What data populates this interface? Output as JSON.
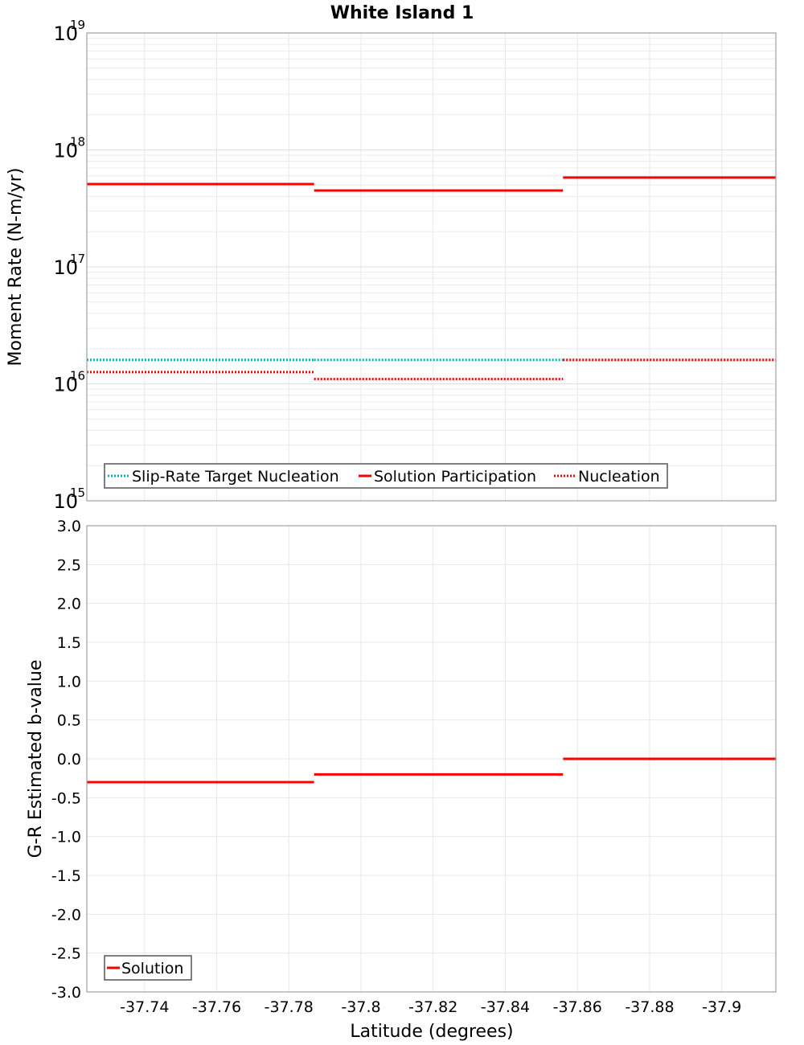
{
  "title": "White Island 1",
  "top_plot": {
    "ylabel": "Moment Rate (N-m/yr)",
    "y_ticks": [
      {
        "base": "10",
        "exp": "19"
      },
      {
        "base": "10",
        "exp": "18"
      },
      {
        "base": "10",
        "exp": "17"
      },
      {
        "base": "10",
        "exp": "16"
      },
      {
        "base": "10",
        "exp": "15"
      }
    ],
    "legend": [
      {
        "label": "Slip-Rate Target Nucleation",
        "color": "#00b4b4",
        "style": "dotted"
      },
      {
        "label": "Solution Participation",
        "color": "#ff0000",
        "style": "solid"
      },
      {
        "label": "Nucleation",
        "color": "#ff0000",
        "style": "dotted"
      }
    ]
  },
  "bottom_plot": {
    "ylabel": "G-R Estimated b-value",
    "y_ticks": [
      "3.0",
      "2.5",
      "2.0",
      "1.5",
      "1.0",
      "0.5",
      "0.0",
      "-0.5",
      "-1.0",
      "-1.5",
      "-2.0",
      "-2.5",
      "-3.0"
    ],
    "legend": [
      {
        "label": "Solution",
        "color": "#ff0000",
        "style": "solid"
      }
    ]
  },
  "x_axis": {
    "label": "Latitude (degrees)",
    "ticks": [
      "-37.74",
      "-37.76",
      "-37.78",
      "-37.8",
      "-37.82",
      "-37.84",
      "-37.86",
      "-37.88",
      "-37.9"
    ]
  },
  "chart_data": [
    {
      "type": "line",
      "title": "White Island 1",
      "xlabel": "Latitude (degrees)",
      "ylabel": "Moment Rate (N-m/yr)",
      "yscale": "log",
      "ylim": [
        1000000000000000.0,
        1e+19
      ],
      "xlim": [
        -37.724,
        -37.915
      ],
      "grid": true,
      "legend_position": "lower left",
      "x_ticks": [
        -37.74,
        -37.76,
        -37.78,
        -37.8,
        -37.82,
        -37.84,
        -37.86,
        -37.88,
        -37.9
      ],
      "series": [
        {
          "name": "Slip-Rate Target Nucleation",
          "color": "#00b4b4",
          "style": "dotted",
          "segments": [
            {
              "x": [
                -37.724,
                -37.787
              ],
              "y": 1.6e+16
            },
            {
              "x": [
                -37.787,
                -37.856
              ],
              "y": 1.6e+16
            },
            {
              "x": [
                -37.856,
                -37.915
              ],
              "y": 1.6e+16
            }
          ]
        },
        {
          "name": "Solution Participation",
          "color": "#ff0000",
          "style": "solid",
          "segments": [
            {
              "x": [
                -37.724,
                -37.787
              ],
              "y": 5.1e+17
            },
            {
              "x": [
                -37.787,
                -37.856
              ],
              "y": 4.5e+17
            },
            {
              "x": [
                -37.856,
                -37.915
              ],
              "y": 5.8e+17
            }
          ]
        },
        {
          "name": "Nucleation",
          "color": "#ff0000",
          "style": "dotted",
          "segments": [
            {
              "x": [
                -37.724,
                -37.787
              ],
              "y": 1.26e+16
            },
            {
              "x": [
                -37.787,
                -37.856
              ],
              "y": 1.1e+16
            },
            {
              "x": [
                -37.856,
                -37.915
              ],
              "y": 1.6e+16
            }
          ]
        }
      ]
    },
    {
      "type": "line",
      "title": "",
      "xlabel": "Latitude (degrees)",
      "ylabel": "G-R Estimated b-value",
      "ylim": [
        -3.0,
        3.0
      ],
      "xlim": [
        -37.724,
        -37.915
      ],
      "grid": true,
      "legend_position": "lower left",
      "x_ticks": [
        -37.74,
        -37.76,
        -37.78,
        -37.8,
        -37.82,
        -37.84,
        -37.86,
        -37.88,
        -37.9
      ],
      "y_ticks": [
        3.0,
        2.5,
        2.0,
        1.5,
        1.0,
        0.5,
        0.0,
        -0.5,
        -1.0,
        -1.5,
        -2.0,
        -2.5,
        -3.0
      ],
      "series": [
        {
          "name": "Solution",
          "color": "#ff0000",
          "style": "solid",
          "segments": [
            {
              "x": [
                -37.724,
                -37.787
              ],
              "y": -0.3
            },
            {
              "x": [
                -37.787,
                -37.856
              ],
              "y": -0.2
            },
            {
              "x": [
                -37.856,
                -37.915
              ],
              "y": 0.0
            }
          ]
        }
      ]
    }
  ]
}
